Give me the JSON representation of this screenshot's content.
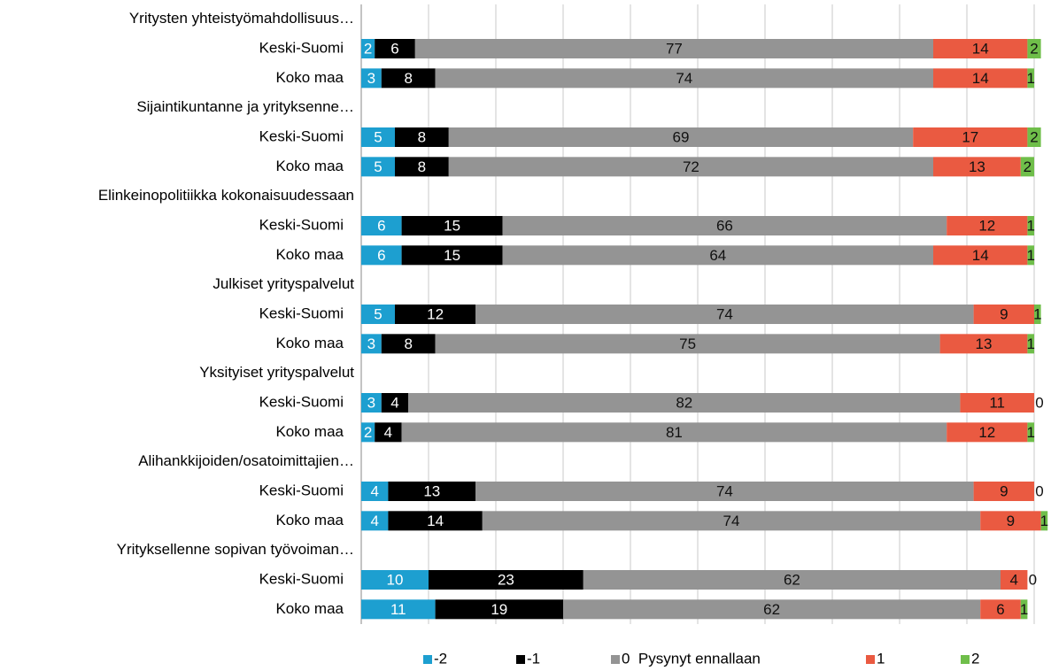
{
  "chart_data": {
    "type": "stacked_barh",
    "categories": [
      "Yritysten yhteistyömahdollisuus…",
      "Keski-Suomi",
      "Koko maa",
      "Sijaintikuntanne ja yrityksenne…",
      "Keski-Suomi",
      "Koko maa",
      "Elinkeinopolitiikka kokonaisuudessaan",
      "Keski-Suomi",
      "Koko maa",
      "Julkiset yrityspalvelut",
      "Keski-Suomi",
      "Koko maa",
      "Yksityiset yrityspalvelut",
      "Keski-Suomi",
      "Koko maa",
      "Alihankkijoiden/osatoimittajien…",
      "Keski-Suomi",
      "Koko maa",
      "Yrityksellenne sopivan työvoiman…",
      "Keski-Suomi",
      "Koko maa"
    ],
    "series": [
      {
        "name": "-2",
        "color": "#1d9fd0",
        "values": [
          null,
          2,
          3,
          null,
          5,
          5,
          null,
          6,
          6,
          null,
          5,
          3,
          null,
          3,
          2,
          null,
          4,
          4,
          null,
          10,
          11
        ]
      },
      {
        "name": "-1",
        "color": "#000000",
        "values": [
          null,
          6,
          8,
          null,
          8,
          8,
          null,
          15,
          15,
          null,
          12,
          8,
          null,
          4,
          4,
          null,
          13,
          14,
          null,
          23,
          19
        ]
      },
      {
        "name": "0  Pysynyt ennallaan",
        "color": "#949494",
        "values": [
          null,
          77,
          74,
          null,
          69,
          72,
          null,
          66,
          64,
          null,
          74,
          75,
          null,
          82,
          81,
          null,
          74,
          74,
          null,
          62,
          62
        ]
      },
      {
        "name": "1",
        "color": "#ea5a41",
        "values": [
          null,
          14,
          14,
          null,
          17,
          13,
          null,
          12,
          14,
          null,
          9,
          13,
          null,
          11,
          12,
          null,
          9,
          9,
          null,
          4,
          6
        ]
      },
      {
        "name": "2",
        "color": "#6fbe4a",
        "values": [
          null,
          2,
          1,
          null,
          2,
          2,
          null,
          1,
          1,
          null,
          1,
          1,
          null,
          0,
          1,
          null,
          0,
          1,
          null,
          0,
          1
        ]
      }
    ],
    "xlim": [
      0,
      100
    ],
    "xticks": [
      0,
      10,
      20,
      30,
      40,
      50,
      60,
      70,
      80,
      90,
      100
    ],
    "grid": true
  }
}
